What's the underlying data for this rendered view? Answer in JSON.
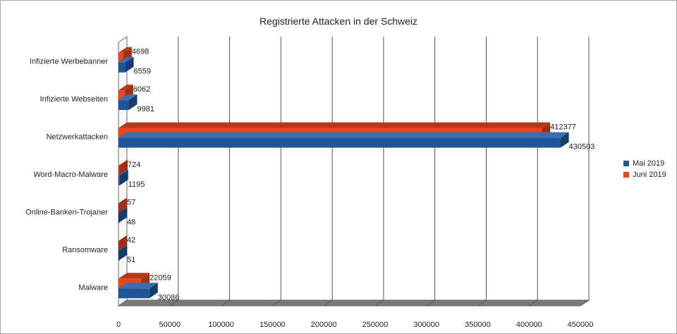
{
  "chart_data": {
    "type": "bar",
    "orientation": "horizontal",
    "title": "Registrierte Attacken in der Schweiz",
    "xlabel": "",
    "ylabel": "",
    "categories": [
      "Infizierte Werbebanner",
      "Infizierte Webseiten",
      "Netzwerkattacken",
      "Word-Macro-Malware",
      "Online-Banken-Trojaner",
      "Ransomware",
      "Malware"
    ],
    "series": [
      {
        "name": "Mai 2019",
        "color": "#1f5597",
        "values": [
          6559,
          9981,
          430503,
          1195,
          48,
          51,
          30086
        ]
      },
      {
        "name": "Juni 2019",
        "color": "#e8461a",
        "values": [
          4698,
          6062,
          412377,
          724,
          57,
          42,
          22059
        ]
      }
    ],
    "xlim": [
      0,
      450000
    ],
    "xticks": [
      0,
      50000,
      100000,
      150000,
      200000,
      250000,
      300000,
      350000,
      400000,
      450000
    ],
    "grid": true,
    "legend_position": "right",
    "three_d": true
  }
}
